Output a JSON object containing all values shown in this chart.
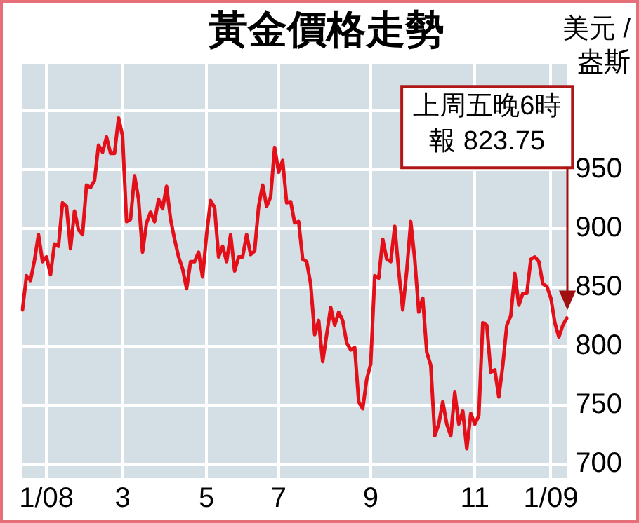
{
  "chart_data": {
    "type": "line",
    "title": "黃金價格走勢",
    "ylabel": "美元 /\n盎斯",
    "categories": [
      null,
      null,
      null,
      null,
      null,
      null,
      "1/08",
      null,
      null,
      null,
      null,
      null,
      null,
      null,
      null,
      null,
      null,
      null,
      null,
      null,
      null,
      null,
      null,
      null,
      null,
      "3",
      null,
      null,
      null,
      null,
      null,
      null,
      null,
      null,
      null,
      null,
      null,
      null,
      null,
      null,
      null,
      null,
      null,
      null,
      null,
      null,
      "5",
      null,
      null,
      null,
      null,
      null,
      null,
      null,
      null,
      null,
      null,
      null,
      null,
      null,
      null,
      null,
      null,
      null,
      "7",
      null,
      null,
      null,
      null,
      null,
      null,
      null,
      null,
      null,
      null,
      null,
      null,
      null,
      null,
      null,
      null,
      null,
      null,
      null,
      null,
      null,
      null,
      "9",
      null,
      null,
      null,
      null,
      null,
      null,
      null,
      null,
      null,
      null,
      null,
      null,
      null,
      null,
      null,
      null,
      null,
      null,
      null,
      null,
      null,
      null,
      null,
      null,
      null,
      "11",
      null,
      null,
      null,
      null,
      null,
      null,
      null,
      null,
      null,
      null,
      null,
      null,
      null,
      null,
      null,
      null,
      null,
      null,
      "1/09",
      null,
      null,
      null,
      null
    ],
    "series": [
      {
        "color": "#e3101a",
        "values": [
          831,
          860,
          856,
          873,
          895,
          872,
          876,
          861,
          887,
          885,
          922,
          919,
          883,
          915,
          899,
          895,
          937,
          935,
          941,
          971,
          965,
          978,
          964,
          964,
          994,
          979,
          906,
          908,
          945,
          925,
          880,
          905,
          914,
          906,
          925,
          917,
          936,
          908,
          891,
          876,
          866,
          849,
          872,
          872,
          880,
          859,
          895,
          924,
          918,
          876,
          885,
          872,
          895,
          864,
          876,
          876,
          895,
          878,
          881,
          919,
          937,
          919,
          927,
          969,
          948,
          958,
          922,
          923,
          905,
          906,
          874,
          872,
          853,
          810,
          822,
          787,
          810,
          833,
          818,
          829,
          822,
          803,
          797,
          799,
          753,
          747,
          772,
          785,
          860,
          858,
          891,
          874,
          872,
          902,
          864,
          831,
          864,
          906,
          874,
          829,
          841,
          795,
          784,
          724,
          734,
          753,
          734,
          724,
          761,
          734,
          745,
          713,
          743,
          734,
          741,
          820,
          818,
          778,
          780,
          757,
          784,
          818,
          826,
          862,
          835,
          845,
          845,
          874,
          876,
          872,
          853,
          851,
          841,
          820,
          808,
          818,
          824
        ]
      }
    ],
    "ylim": [
      688,
      1040
    ],
    "yticks": [
      700,
      750,
      800,
      850,
      900,
      950,
      {
        "value": 1000,
        "label": null
      }
    ],
    "grid": true,
    "legend": false,
    "marker": "none",
    "line_style": "solid",
    "annotations": [
      "上周五晚6時報 823.75"
    ]
  }
}
